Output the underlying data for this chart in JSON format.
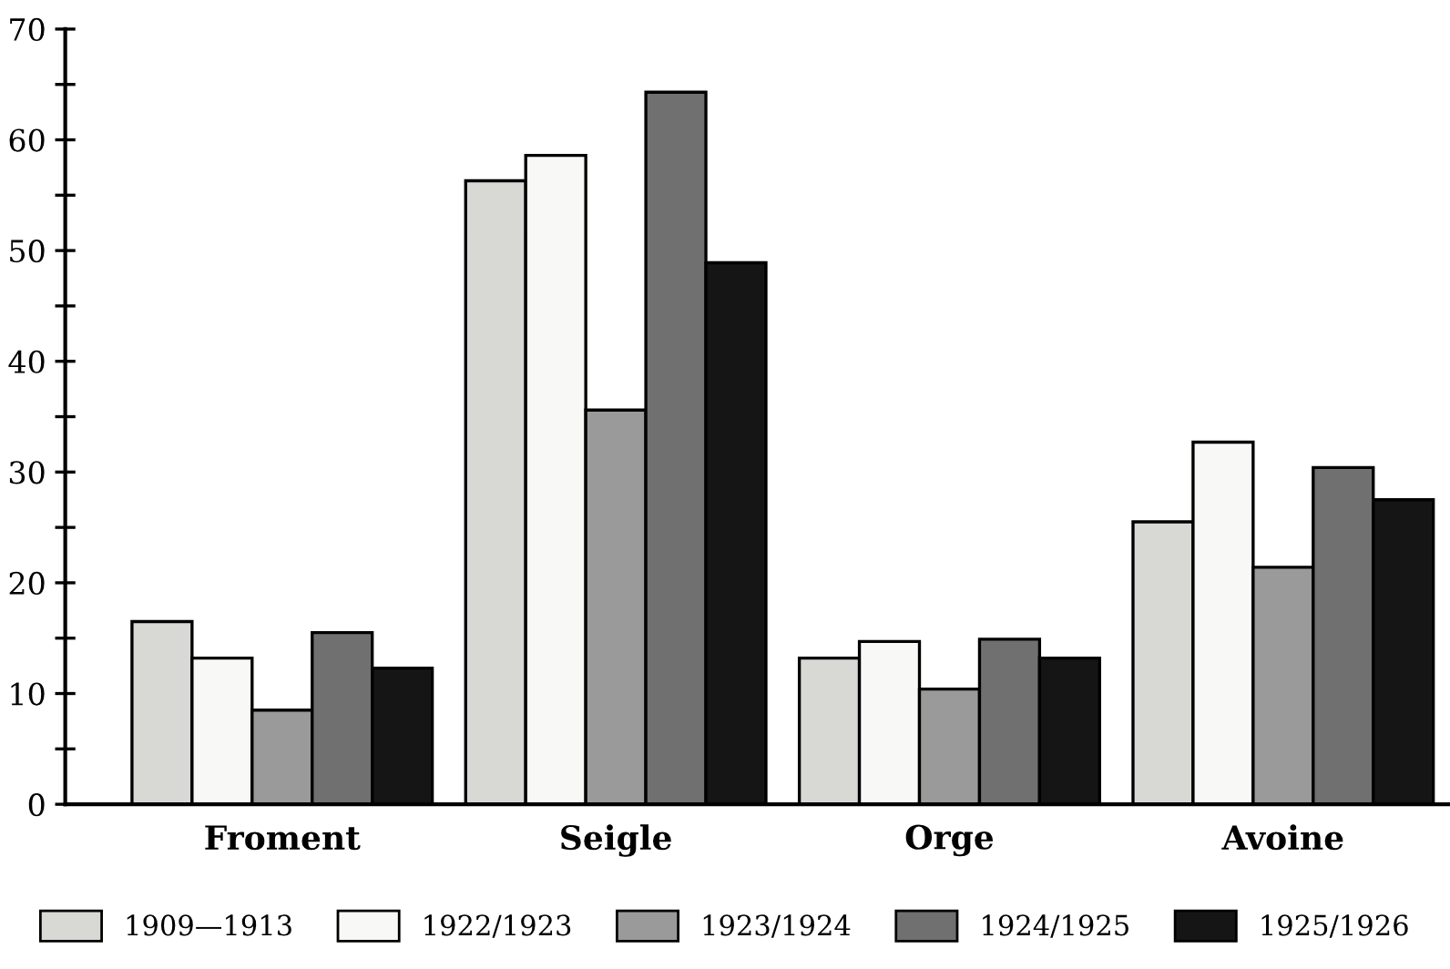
{
  "chart_data": {
    "type": "bar",
    "categories": [
      "Froment",
      "Seigle",
      "Orge",
      "Avoine"
    ],
    "series": [
      {
        "name": "1909—1913",
        "color": "#d8d8d4",
        "values": [
          16.5,
          56.3,
          13.2,
          25.5
        ]
      },
      {
        "name": "1922/1923",
        "color": "#f8f8f6",
        "values": [
          13.2,
          58.6,
          14.7,
          32.7
        ]
      },
      {
        "name": "1923/1924",
        "color": "#9a9a9a",
        "values": [
          8.5,
          35.6,
          10.4,
          21.4
        ]
      },
      {
        "name": "1924/1925",
        "color": "#707070",
        "values": [
          15.5,
          64.3,
          14.9,
          30.4
        ]
      },
      {
        "name": "1925/1926",
        "color": "#151515",
        "values": [
          12.3,
          48.9,
          13.2,
          27.5
        ]
      }
    ],
    "ylim": [
      0,
      70
    ],
    "yticks": [
      0,
      {
        "value": 5,
        "label": null
      },
      10,
      {
        "value": 15,
        "label": null
      },
      20,
      {
        "value": 25,
        "label": null
      },
      30,
      {
        "value": 35,
        "label": null
      },
      40,
      {
        "value": 45,
        "label": null
      },
      50,
      {
        "value": 55,
        "label": null
      },
      60,
      {
        "value": 65,
        "label": null
      },
      70
    ],
    "grid": false,
    "legend": "bottom"
  }
}
